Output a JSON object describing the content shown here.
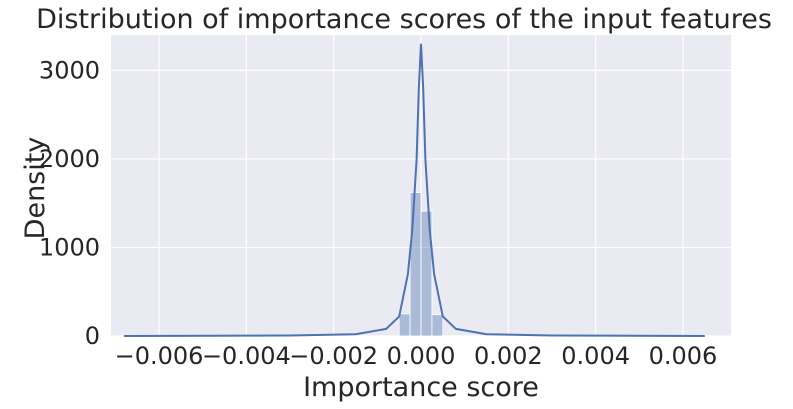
{
  "chart_data": {
    "type": "histogram",
    "title": "Distribution of importance scores of the input features",
    "xlabel": "Importance score",
    "ylabel": "Density",
    "xlim": [
      -0.0071,
      0.0071
    ],
    "ylim": [
      0,
      3400
    ],
    "x_ticks": [
      -0.006,
      -0.004,
      -0.002,
      0.0,
      0.002,
      0.004,
      0.006
    ],
    "x_tick_labels": [
      "−0.006",
      "−0.004",
      "−0.002",
      "0.000",
      "0.002",
      "0.004",
      "0.006"
    ],
    "y_ticks": [
      0,
      1000,
      2000,
      3000
    ],
    "y_tick_labels": [
      "0",
      "1000",
      "2000",
      "3000"
    ],
    "grid": true,
    "bars": [
      {
        "x0": -0.0005,
        "x1": -0.00025,
        "density": 250
      },
      {
        "x0": -0.00025,
        "x1": 0.0,
        "density": 1620
      },
      {
        "x0": 0.0,
        "x1": 0.00025,
        "density": 1410
      },
      {
        "x0": 0.00025,
        "x1": 0.0005,
        "density": 240
      }
    ],
    "kde": {
      "x": [
        -0.0068,
        -0.003,
        -0.0015,
        -0.0008,
        -0.0005,
        -0.0003,
        -0.0002,
        -0.0001,
        -5e-05,
        0.0,
        5e-05,
        0.0001,
        0.0002,
        0.0003,
        0.0005,
        0.0008,
        0.0015,
        0.003,
        0.0065
      ],
      "y": [
        0,
        5,
        20,
        80,
        220,
        700,
        1200,
        2000,
        2800,
        3300,
        2800,
        2000,
        1200,
        700,
        220,
        80,
        20,
        5,
        0
      ]
    },
    "colors": {
      "background": "#eaeaf2",
      "grid": "#ffffff",
      "bar_fill": "#4c72b0",
      "bar_opacity": 0.4,
      "line": "#4c72b0"
    }
  }
}
